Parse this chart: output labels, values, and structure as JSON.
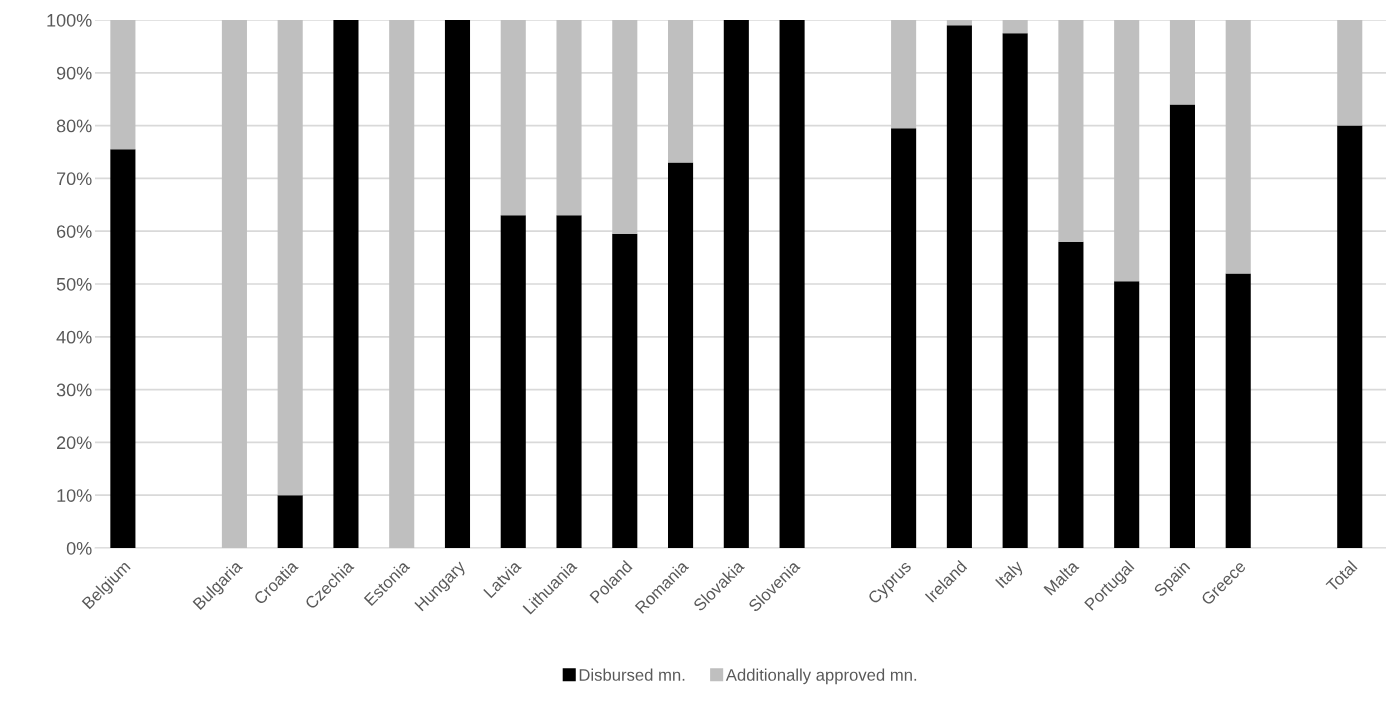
{
  "chart_data": {
    "type": "bar",
    "stacked": true,
    "categories": [
      "Belgium",
      null,
      "Bulgaria",
      "Croatia",
      "Czechia",
      "Estonia",
      "Hungary",
      "Latvia",
      "Lithuania",
      "Poland",
      "Romania",
      "Slovakia",
      "Slovenia",
      null,
      "Cyprus",
      "Ireland",
      "Italy",
      "Malta",
      "Portugal",
      "Spain",
      "Greece",
      null,
      "Total"
    ],
    "series": [
      {
        "name": "Disbursed mn.",
        "color": "#000000",
        "values": [
          75.5,
          null,
          0,
          10,
          100,
          0,
          100,
          63,
          63,
          59.5,
          73,
          100,
          100,
          null,
          79.5,
          99,
          97.5,
          58,
          50.5,
          84,
          52,
          null,
          80
        ]
      },
      {
        "name": "Additionally approved mn.",
        "color": "#bfbfbf",
        "values": [
          24.5,
          null,
          100,
          90,
          0,
          100,
          0,
          37,
          37,
          40.5,
          27,
          0,
          0,
          null,
          20.5,
          1,
          2.5,
          42,
          49.5,
          16,
          48,
          null,
          20
        ]
      }
    ],
    "ylim": [
      0,
      100
    ],
    "yticks": [
      {
        "value": 0,
        "label": "0%"
      },
      {
        "value": 10,
        "label": "10%"
      },
      {
        "value": 20,
        "label": "20%"
      },
      {
        "value": 30,
        "label": "30%"
      },
      {
        "value": 40,
        "label": "40%"
      },
      {
        "value": 50,
        "label": "50%"
      },
      {
        "value": 60,
        "label": "60%"
      },
      {
        "value": 70,
        "label": "70%"
      },
      {
        "value": 80,
        "label": "80%"
      },
      {
        "value": 90,
        "label": "90%"
      },
      {
        "value": 100,
        "label": "100%"
      }
    ],
    "grid": "y",
    "legend": "bottom"
  }
}
